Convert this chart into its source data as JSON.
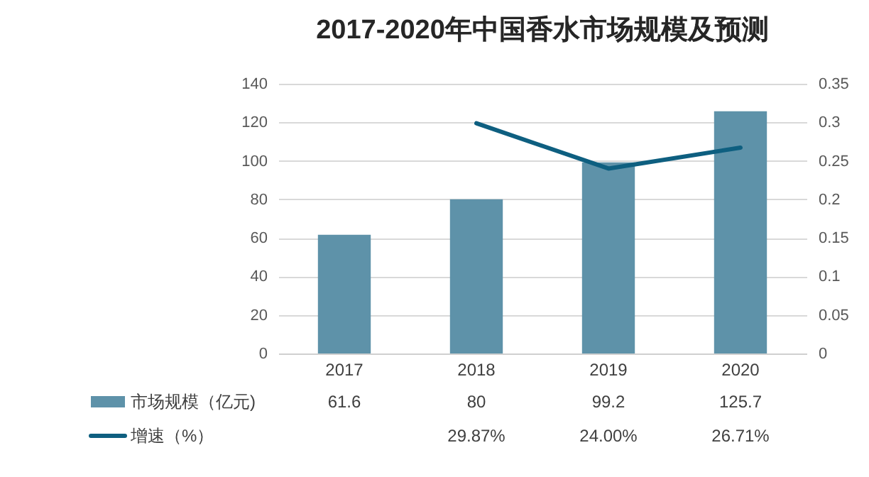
{
  "chart_data": {
    "type": "bar",
    "title": "2017-2020年中国香水市场规模及预测",
    "categories": [
      "2017",
      "2018",
      "2019",
      "2020"
    ],
    "series": [
      {
        "name": "市场规模（亿元)",
        "color": "#5e92a9",
        "values": [
          61.6,
          80,
          99.2,
          125.7
        ],
        "value_labels": [
          "61.6",
          "80",
          "99.2",
          "125.7"
        ]
      },
      {
        "name": "增速（%）",
        "type": "line",
        "axis": "y2",
        "color": "#0e5f80",
        "values": [
          null,
          0.2987,
          0.24,
          0.2671
        ],
        "value_labels": [
          null,
          "29.87%",
          "24.00%",
          "26.71%"
        ]
      }
    ],
    "ylim": [
      0,
      140
    ],
    "yticks": [
      0,
      20,
      40,
      60,
      80,
      100,
      120,
      140
    ],
    "y2lim": [
      0,
      0.35
    ],
    "y2ticks": [
      0,
      0.05,
      0.1,
      0.15,
      0.2,
      0.25,
      0.3,
      0.35
    ],
    "grid": "y",
    "legend": "bottom",
    "marker": "none",
    "line_style": "solid"
  }
}
